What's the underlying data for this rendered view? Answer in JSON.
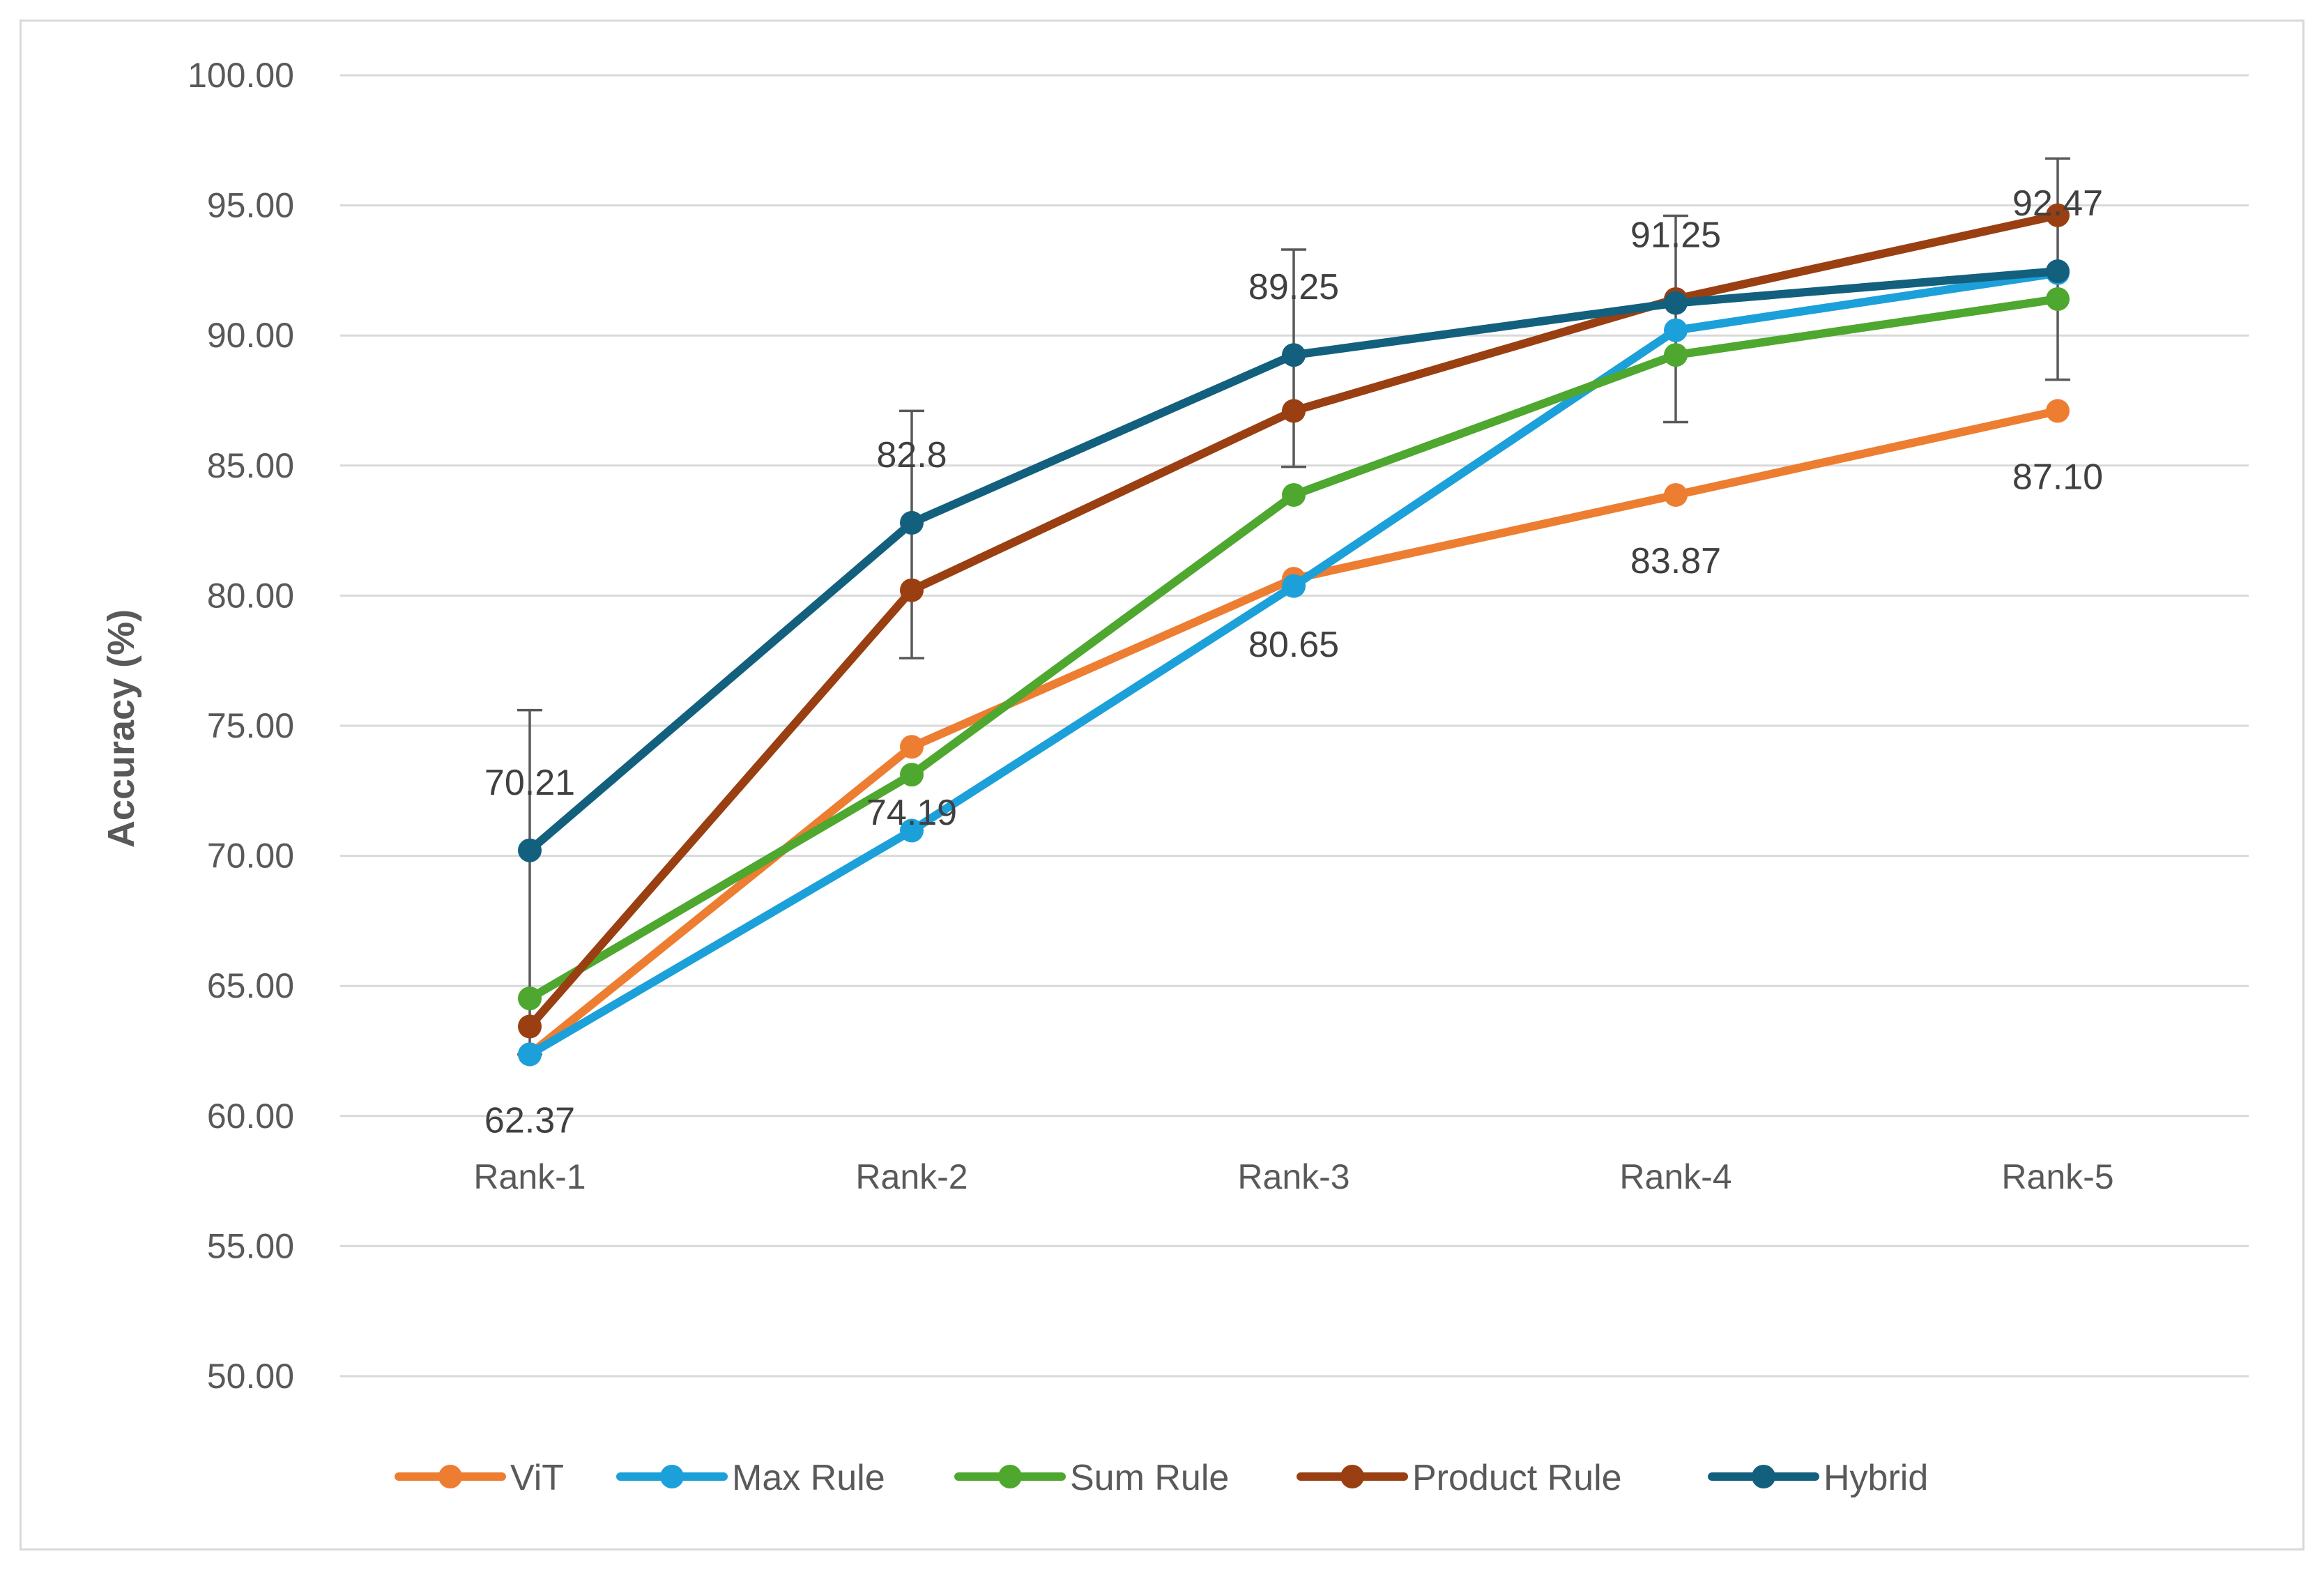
{
  "chart_data": {
    "type": "line",
    "title": "",
    "xlabel": "",
    "ylabel": "Accuracy (%)",
    "ylim": [
      50,
      100
    ],
    "ytick_step": 5,
    "ytick_labels": [
      "50.00",
      "55.00",
      "60.00",
      "65.00",
      "70.00",
      "75.00",
      "80.00",
      "85.00",
      "90.00",
      "95.00",
      "100.00"
    ],
    "categories": [
      "Rank-1",
      "Rank-2",
      "Rank-3",
      "Rank-4",
      "Rank-5"
    ],
    "grid": true,
    "legend_position": "bottom",
    "series": [
      {
        "name": "ViT",
        "color": "#ED7D31",
        "values": [
          62.37,
          74.19,
          80.65,
          83.87,
          87.1
        ]
      },
      {
        "name": "Max Rule",
        "color": "#1CA0D9",
        "values": [
          62.37,
          70.97,
          80.37,
          90.2,
          92.4
        ]
      },
      {
        "name": "Sum Rule",
        "color": "#4EA72E",
        "values": [
          64.52,
          73.12,
          83.87,
          89.25,
          91.4
        ]
      },
      {
        "name": "Product Rule",
        "color": "#9A3F12",
        "values": [
          63.44,
          80.21,
          87.1,
          91.4,
          94.62
        ]
      },
      {
        "name": "Hybrid",
        "color": "#12607D",
        "values": [
          70.21,
          82.8,
          89.25,
          91.25,
          92.47
        ]
      }
    ],
    "error_bars": {
      "series": "Hybrid",
      "low": [
        62.37,
        77.6,
        84.95,
        86.67,
        88.3
      ],
      "high": [
        75.6,
        87.1,
        93.3,
        94.6,
        96.8
      ]
    },
    "data_labels": [
      {
        "text": "70.21",
        "category": 0,
        "value": 70.21,
        "position": "above"
      },
      {
        "text": "62.37",
        "category": 0,
        "value": 62.37,
        "position": "below"
      },
      {
        "text": "82.8",
        "category": 1,
        "value": 82.8,
        "position": "above"
      },
      {
        "text": "74.19",
        "category": 1,
        "value": 74.19,
        "position": "below"
      },
      {
        "text": "89.25",
        "category": 2,
        "value": 89.25,
        "position": "above"
      },
      {
        "text": "80.65",
        "category": 2,
        "value": 80.65,
        "position": "below"
      },
      {
        "text": "91.25",
        "category": 3,
        "value": 91.25,
        "position": "above"
      },
      {
        "text": "83.87",
        "category": 3,
        "value": 83.87,
        "position": "below"
      },
      {
        "text": "92.47",
        "category": 4,
        "value": 92.47,
        "position": "above"
      },
      {
        "text": "87.10",
        "category": 4,
        "value": 87.1,
        "position": "below"
      }
    ]
  }
}
